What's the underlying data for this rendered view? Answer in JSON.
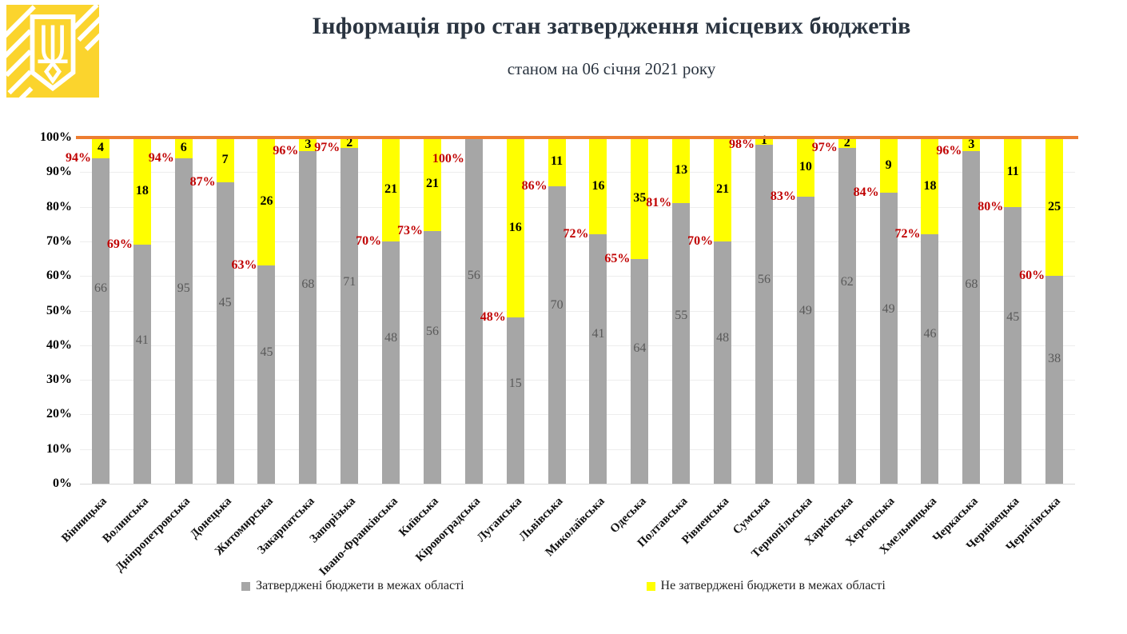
{
  "header": {
    "title": "Інформація про стан затвердження місцевих бюджетів",
    "subtitle": "станом на 06 січня 2021 року",
    "logo_icon": "ukraine-trident-emblem"
  },
  "colors": {
    "approved_bar": "#A6A6A6",
    "not_approved_bar": "#FFFF00",
    "target_line": "#ED7D31",
    "pct_label": "#C00000",
    "approved_count_label": "#595959",
    "title_text": "#2A3440",
    "logo_yellow": "#FBD42D"
  },
  "chart_data": {
    "type": "bar",
    "stacked": true,
    "grid": true,
    "title": "Інформація про стан затвердження місцевих бюджетів",
    "subtitle": "станом на 06 січня 2021 року",
    "xlabel": "",
    "ylabel": "",
    "ylim": [
      0,
      100
    ],
    "y_ticks": [
      "0%",
      "10%",
      "20%",
      "30%",
      "40%",
      "50%",
      "60%",
      "70%",
      "80%",
      "90%",
      "100%"
    ],
    "target_line": {
      "value": 100,
      "color": "#ED7D31"
    },
    "legend_position": "bottom",
    "legend": [
      {
        "label": "Затверджені бюджети в межах області",
        "color": "#A6A6A6"
      },
      {
        "label": "Не затверджені бюджети в межах області",
        "color": "#FFFF00"
      }
    ],
    "categories": [
      "Вінницька",
      "Волинська",
      "Дніпропетровська",
      "Донецька",
      "Житомирська",
      "Закарпатська",
      "Запорізька",
      "Івано-Франківська",
      "Київська",
      "Кіровоградська",
      "Луганська",
      "Львівська",
      "Миколаївська",
      "Одеська",
      "Полтавська",
      "Рівненська",
      "Сумська",
      "Тернопільська",
      "Харківська",
      "Херсонська",
      "Хмельницька",
      "Черкаська",
      "Чернівецька",
      "Чернігівська"
    ],
    "series": [
      {
        "name": "Затверджені бюджети в межах області",
        "values": [
          66,
          41,
          95,
          45,
          45,
          68,
          71,
          48,
          56,
          56,
          15,
          70,
          41,
          64,
          55,
          48,
          56,
          49,
          62,
          49,
          46,
          68,
          45,
          38
        ]
      },
      {
        "name": "Не затверджені бюджети в межах області",
        "values": [
          4,
          18,
          6,
          7,
          26,
          3,
          2,
          21,
          21,
          0,
          16,
          11,
          16,
          35,
          13,
          21,
          1,
          10,
          2,
          9,
          18,
          3,
          11,
          25
        ]
      }
    ],
    "pct_labels": [
      "94%",
      "69%",
      "94%",
      "87%",
      "63%",
      "96%",
      "97%",
      "70%",
      "73%",
      "100%",
      "48%",
      "86%",
      "72%",
      "65%",
      "81%",
      "70%",
      "98%",
      "83%",
      "97%",
      "84%",
      "72%",
      "96%",
      "80%",
      "60%"
    ]
  }
}
